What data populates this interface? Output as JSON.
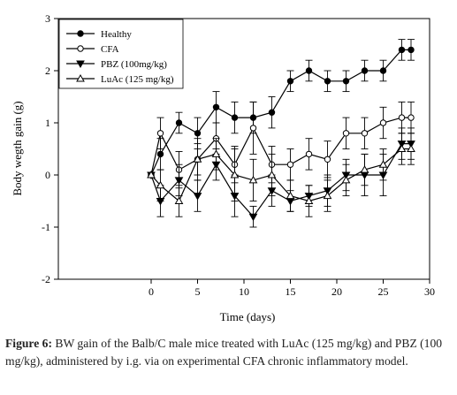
{
  "chart_data": {
    "type": "line",
    "xlabel": "Time (days)",
    "ylabel": "Body wegth gain (g)",
    "xlim": [
      -10,
      30
    ],
    "ylim": [
      -2,
      3
    ],
    "xticks": [
      0,
      5,
      10,
      15,
      20,
      25,
      30
    ],
    "yticks": [
      -2,
      -1,
      0,
      1,
      2,
      3
    ],
    "legend_position": "top-left inside",
    "grid": false,
    "x": [
      0,
      1,
      3,
      5,
      7,
      9,
      11,
      13,
      15,
      17,
      19,
      21,
      23,
      25,
      27,
      28
    ],
    "series": [
      {
        "name": "Healthy",
        "marker": "filled-circle",
        "values": [
          0,
          0.4,
          1.0,
          0.8,
          1.3,
          1.1,
          1.1,
          1.2,
          1.8,
          2.0,
          1.8,
          1.8,
          2.0,
          2.0,
          2.4,
          2.4
        ],
        "errors": [
          0.05,
          0.3,
          0.2,
          0.3,
          0.3,
          0.3,
          0.3,
          0.3,
          0.2,
          0.2,
          0.2,
          0.2,
          0.2,
          0.2,
          0.2,
          0.2
        ]
      },
      {
        "name": "CFA",
        "marker": "open-circle",
        "values": [
          0,
          0.8,
          0.1,
          0.3,
          0.7,
          0.2,
          0.9,
          0.2,
          0.2,
          0.4,
          0.3,
          0.8,
          0.8,
          1.0,
          1.1,
          1.1
        ],
        "errors": [
          0.05,
          0.3,
          0.35,
          0.4,
          0.3,
          0.35,
          0.5,
          0.35,
          0.3,
          0.3,
          0.35,
          0.3,
          0.3,
          0.3,
          0.3,
          0.3
        ]
      },
      {
        "name": "PBZ (100mg/kg)",
        "marker": "filled-triangle-down",
        "values": [
          0,
          -0.5,
          -0.1,
          -0.4,
          0.2,
          -0.4,
          -0.8,
          -0.3,
          -0.5,
          -0.4,
          -0.3,
          0.0,
          0.0,
          0.0,
          0.6,
          0.6
        ],
        "errors": [
          0.05,
          0.3,
          0.3,
          0.3,
          0.3,
          0.4,
          0.2,
          0.3,
          0.2,
          0.2,
          0.3,
          0.3,
          0.4,
          0.4,
          0.3,
          0.3
        ]
      },
      {
        "name": "LuAc (125 mg/kg)",
        "marker": "open-triangle-up",
        "values": [
          0,
          -0.2,
          -0.5,
          0.3,
          0.4,
          0.0,
          -0.1,
          0.0,
          -0.4,
          -0.5,
          -0.4,
          -0.1,
          0.1,
          0.2,
          0.5,
          0.5
        ],
        "errors": [
          0.05,
          0.3,
          0.3,
          0.3,
          0.3,
          0.5,
          0.4,
          0.4,
          0.3,
          0.3,
          0.3,
          0.3,
          0.3,
          0.3,
          0.3,
          0.3
        ]
      }
    ]
  },
  "caption": {
    "label": "Figure 6:",
    "text": " BW gain of the Balb/C male mice treated with LuAc (125 mg/kg) and PBZ (100 mg/kg), administered by i.g. via on experimental CFA chronic inflammatory model."
  }
}
